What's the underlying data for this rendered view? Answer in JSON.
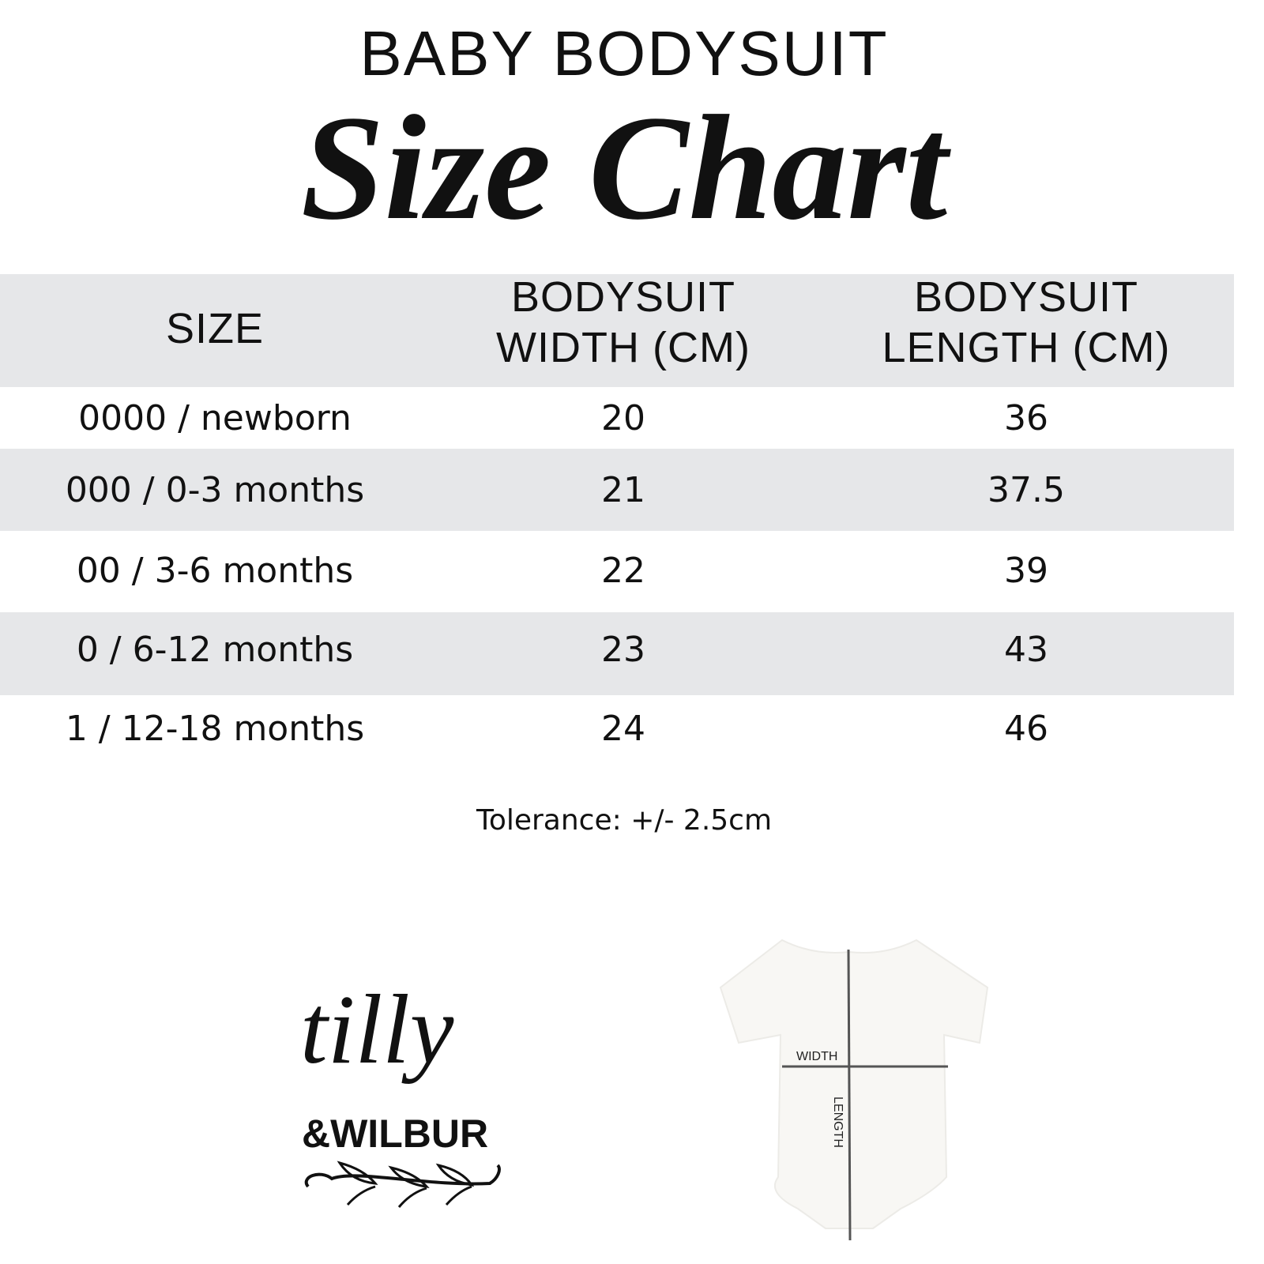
{
  "title": "BABY BODYSUIT",
  "subtitle": "Size Chart",
  "table": {
    "headers": [
      "SIZE",
      "BODYSUIT\nWIDTH (CM)",
      "BODYSUIT\nLENGTH (CM)"
    ],
    "rows": [
      [
        "0000 / newborn",
        "20",
        "36"
      ],
      [
        "000 / 0-3 months",
        "21",
        "37.5"
      ],
      [
        "00 / 3-6 months",
        "22",
        "39"
      ],
      [
        "0 / 6-12 months",
        "23",
        "43"
      ],
      [
        "1 / 12-18 months",
        "24",
        "46"
      ]
    ]
  },
  "tolerance": "Tolerance: +/- 2.5cm",
  "logo": {
    "line1": "tilly",
    "line2": "&WILBUR"
  },
  "diagram": {
    "width_label": "WIDTH",
    "length_label": "LENGTH"
  },
  "colors": {
    "band": "#e6e7e9",
    "text": "#111111"
  }
}
